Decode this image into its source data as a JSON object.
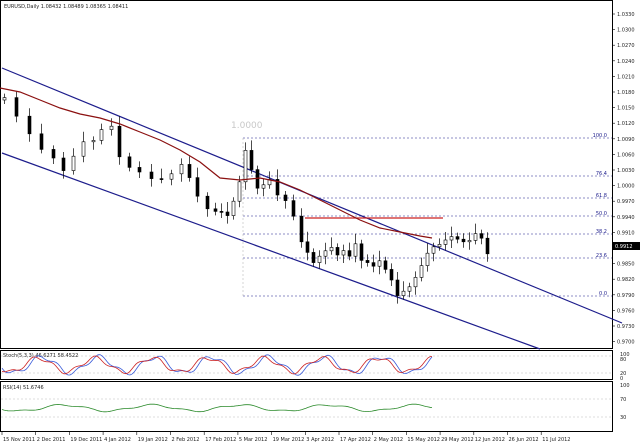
{
  "window": {
    "symbol_header": "EURUSD,Daily 1.08432 1.08489 1.08365 1.08411",
    "fib_start_label": "1.0000"
  },
  "colors": {
    "channel": "#1d1d8c",
    "moving_average": "#8b1010",
    "resistance": "#cc2222",
    "fib": "#1a1a8a",
    "stoch_main": "#3a5bd9",
    "stoch_signal": "#cc2222",
    "rsi": "#2a8a2a",
    "candle": "#000000"
  },
  "price_axis": {
    "ticks": [
      "1.0330",
      "1.0300",
      "1.0270",
      "1.0240",
      "1.0210",
      "1.0180",
      "1.0150",
      "1.0120",
      "1.0090",
      "1.0060",
      "1.0030",
      "1.0000",
      "0.9970",
      "0.9940",
      "0.9910",
      "0.9880",
      "0.9850",
      "0.9820",
      "0.9790",
      "0.9760",
      "0.9730",
      "0.9700"
    ],
    "current_price": "0.9912"
  },
  "fib_levels": [
    {
      "label": "100.0"
    },
    {
      "label": "76.4"
    },
    {
      "label": "61.8"
    },
    {
      "label": "50.0"
    },
    {
      "label": "38.2"
    },
    {
      "label": "23.6"
    },
    {
      "label": "0.0"
    }
  ],
  "indicators": {
    "stoch_label": "Stoch(5,3,3) 46.6271 58.4522",
    "stoch_levels": [
      "100",
      "80",
      "20",
      "0"
    ],
    "rsi_label": "RSI(14) 51.6746",
    "rsi_levels": [
      "100",
      "70",
      "30"
    ]
  },
  "date_axis": [
    "15 Nov 2011",
    "2 Dec 2011",
    "19 Dec 2011",
    "4 Jan 2012",
    "19 Jan 2012",
    "2 Feb 2012",
    "17 Feb 2012",
    "5 Mar 2012",
    "19 Mar 2012",
    "3 Apr 2012",
    "17 Apr 2012",
    "2 May 2012",
    "15 May 2012",
    "29 May 2012",
    "12 Jun 2012",
    "26 Jun 2012",
    "11 Jul 2012"
  ]
}
